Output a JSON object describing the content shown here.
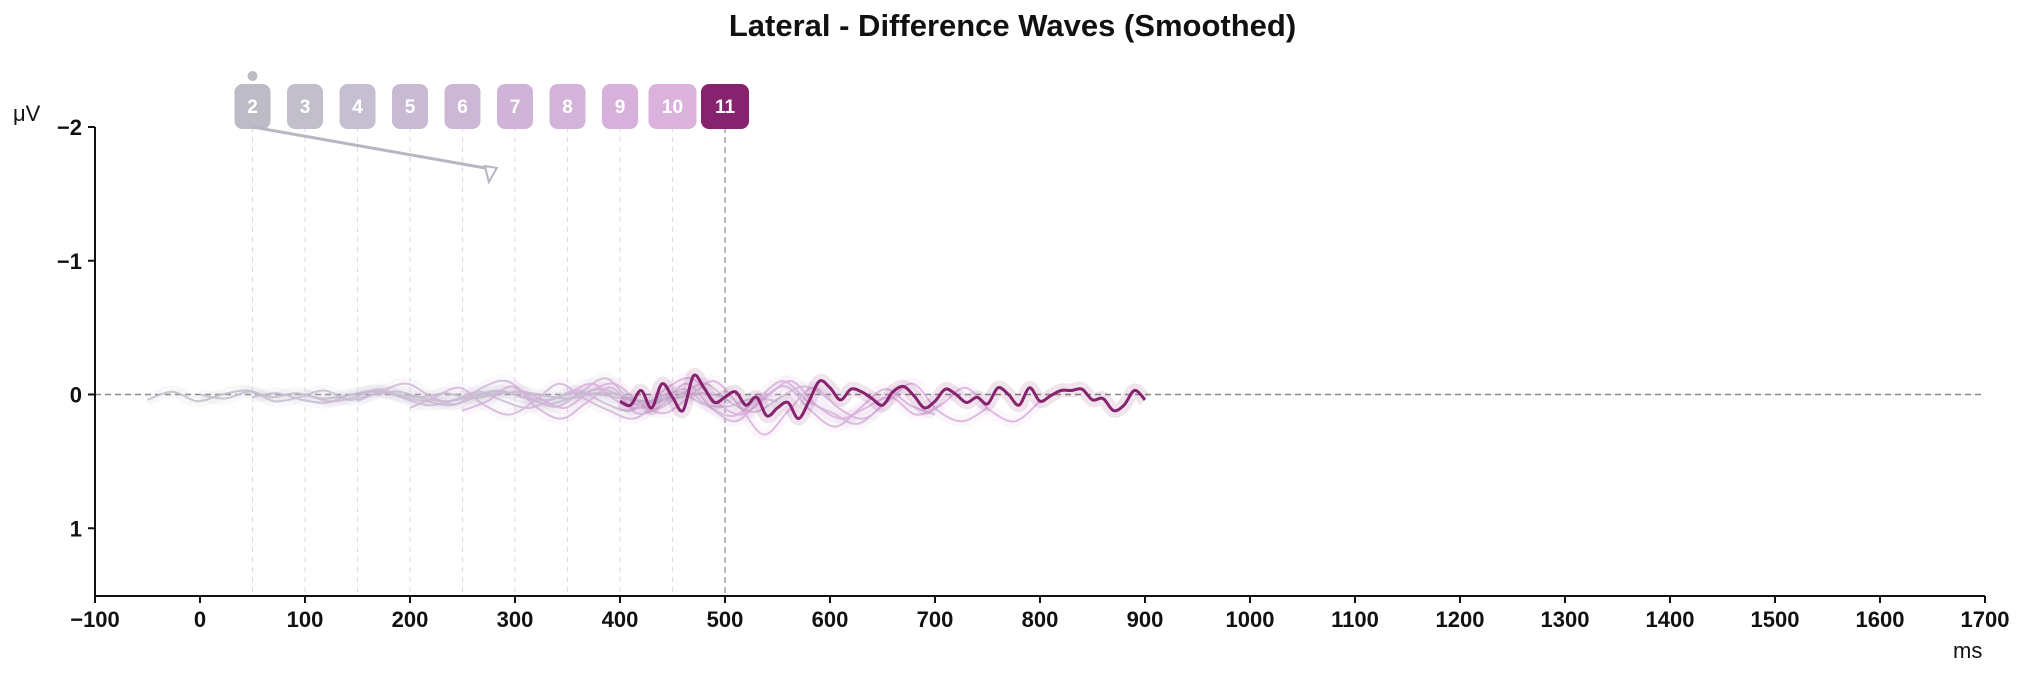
{
  "chart_data": {
    "type": "line",
    "title": "Lateral - Difference Waves (Smoothed)",
    "xlabel": "ms",
    "ylabel": "μV",
    "xlim": [
      -100,
      1700
    ],
    "ylim": [
      1.5,
      -2
    ],
    "y_inverted": true,
    "x_ticks": [
      -100,
      0,
      100,
      200,
      300,
      400,
      500,
      600,
      700,
      800,
      900,
      1000,
      1100,
      1200,
      1300,
      1400,
      1500,
      1600,
      1700
    ],
    "y_ticks": [
      -2,
      -1,
      0,
      1
    ],
    "zero_line": true,
    "highlighted_series": "11",
    "series": [
      {
        "name": "2",
        "color": "#bfbdc8",
        "x_range": [
          -50,
          400
        ],
        "values": [
          0.04,
          -0.02,
          0.05,
          0.0,
          -0.03,
          0.02,
          -0.01,
          0.03,
          0.01,
          -0.02,
          0.0,
          0.02,
          -0.01,
          0.03,
          0.0,
          -0.02,
          0.01,
          0.03,
          -0.01,
          0.0
        ]
      },
      {
        "name": "3",
        "color": "#c3bfcc",
        "x_range": [
          0,
          450
        ],
        "values": [
          0.0,
          0.03,
          -0.02,
          0.05,
          0.02,
          -0.03,
          0.04,
          0.0,
          -0.02,
          0.03,
          0.05,
          0.01,
          -0.03,
          0.02,
          0.04,
          -0.01,
          0.0,
          0.03,
          0.05,
          0.02
        ]
      },
      {
        "name": "4",
        "color": "#c5bdd1",
        "x_range": [
          50,
          500
        ],
        "values": [
          0.02,
          -0.01,
          0.04,
          0.06,
          0.0,
          -0.03,
          0.02,
          0.05,
          0.08,
          0.02,
          -0.02,
          0.03,
          0.07,
          0.01,
          -0.04,
          0.02,
          0.06,
          0.03,
          -0.01,
          0.02
        ]
      },
      {
        "name": "5",
        "color": "#c9bbd4",
        "x_range": [
          100,
          550
        ],
        "values": [
          0.0,
          0.05,
          0.02,
          -0.04,
          0.03,
          0.08,
          0.04,
          -0.02,
          0.05,
          0.1,
          0.03,
          -0.03,
          0.06,
          0.12,
          0.04,
          -0.02,
          0.07,
          0.09,
          0.03,
          0.05
        ]
      },
      {
        "name": "6",
        "color": "#cdb8d6",
        "x_range": [
          150,
          600
        ],
        "values": [
          0.05,
          -0.03,
          -0.08,
          0.02,
          0.07,
          -0.05,
          -0.1,
          0.03,
          0.09,
          -0.02,
          -0.12,
          0.05,
          0.11,
          0.0,
          -0.08,
          0.06,
          0.13,
          0.02,
          -0.06,
          0.04
        ]
      },
      {
        "name": "7",
        "color": "#d1b6d8",
        "x_range": [
          200,
          650
        ],
        "values": [
          0.1,
          0.02,
          -0.05,
          0.08,
          0.15,
          0.05,
          -0.08,
          0.03,
          0.12,
          0.18,
          0.06,
          -0.04,
          0.09,
          0.16,
          0.03,
          -0.1,
          0.05,
          0.14,
          0.22,
          0.08
        ]
      },
      {
        "name": "8",
        "color": "#d5b2da",
        "x_range": [
          250,
          700
        ],
        "values": [
          0.12,
          0.05,
          -0.06,
          0.1,
          0.18,
          0.06,
          -0.05,
          0.14,
          0.08,
          -0.08,
          0.1,
          0.2,
          0.04,
          -0.06,
          0.12,
          0.24,
          0.1,
          -0.04,
          0.08,
          0.15
        ]
      },
      {
        "name": "9",
        "color": "#d8b0dc",
        "x_range": [
          300,
          750
        ],
        "values": [
          -0.05,
          0.03,
          0.1,
          -0.02,
          -0.08,
          0.06,
          0.14,
          0.02,
          -0.1,
          0.08,
          0.3,
          0.12,
          -0.05,
          0.1,
          0.18,
          0.05,
          -0.08,
          0.12,
          0.2,
          0.1
        ]
      },
      {
        "name": "10",
        "color": "#dcaedd",
        "x_range": [
          350,
          800
        ],
        "values": [
          0.0,
          -0.08,
          0.05,
          0.1,
          -0.05,
          -0.12,
          0.06,
          0.15,
          0.02,
          -0.1,
          0.08,
          0.18,
          0.1,
          0.02,
          0.15,
          0.08,
          -0.05,
          0.12,
          0.2,
          0.05
        ]
      },
      {
        "name": "11",
        "color": "#86226e",
        "x_range": [
          400,
          900
        ],
        "values": [
          0.05,
          0.08,
          -0.03,
          0.1,
          -0.08,
          0.02,
          0.12,
          -0.14,
          -0.05,
          0.06,
          0.02,
          -0.02,
          0.08,
          0.02,
          0.16,
          0.1,
          0.06,
          0.18,
          0.05,
          -0.1,
          -0.05,
          0.04,
          -0.04,
          -0.02,
          0.03,
          0.08,
          -0.02,
          -0.06,
          0.01,
          0.1,
          0.05,
          -0.04,
          0.0,
          0.06,
          0.02,
          0.07,
          -0.05,
          0.0,
          0.08,
          -0.05,
          0.05,
          0.01,
          -0.03,
          -0.03,
          -0.04,
          0.04,
          0.03,
          0.12,
          0.08,
          -0.03,
          0.04
        ]
      }
    ],
    "markers": [
      {
        "label": "2",
        "x": 50,
        "color": "#bdbbc6"
      },
      {
        "label": "3",
        "x": 100,
        "color": "#c2bfcb"
      },
      {
        "label": "4",
        "x": 150,
        "color": "#c6bfd2"
      },
      {
        "label": "5",
        "x": 200,
        "color": "#c9bad4"
      },
      {
        "label": "6",
        "x": 250,
        "color": "#ccb7d5"
      },
      {
        "label": "7",
        "x": 300,
        "color": "#cfb4d7"
      },
      {
        "label": "8",
        "x": 350,
        "color": "#d3b3d9"
      },
      {
        "label": "9",
        "x": 400,
        "color": "#d7b1db"
      },
      {
        "label": "10",
        "x": 450,
        "color": "#dbb2dc"
      },
      {
        "label": "11",
        "x": 500,
        "color": "#86226e"
      }
    ]
  }
}
